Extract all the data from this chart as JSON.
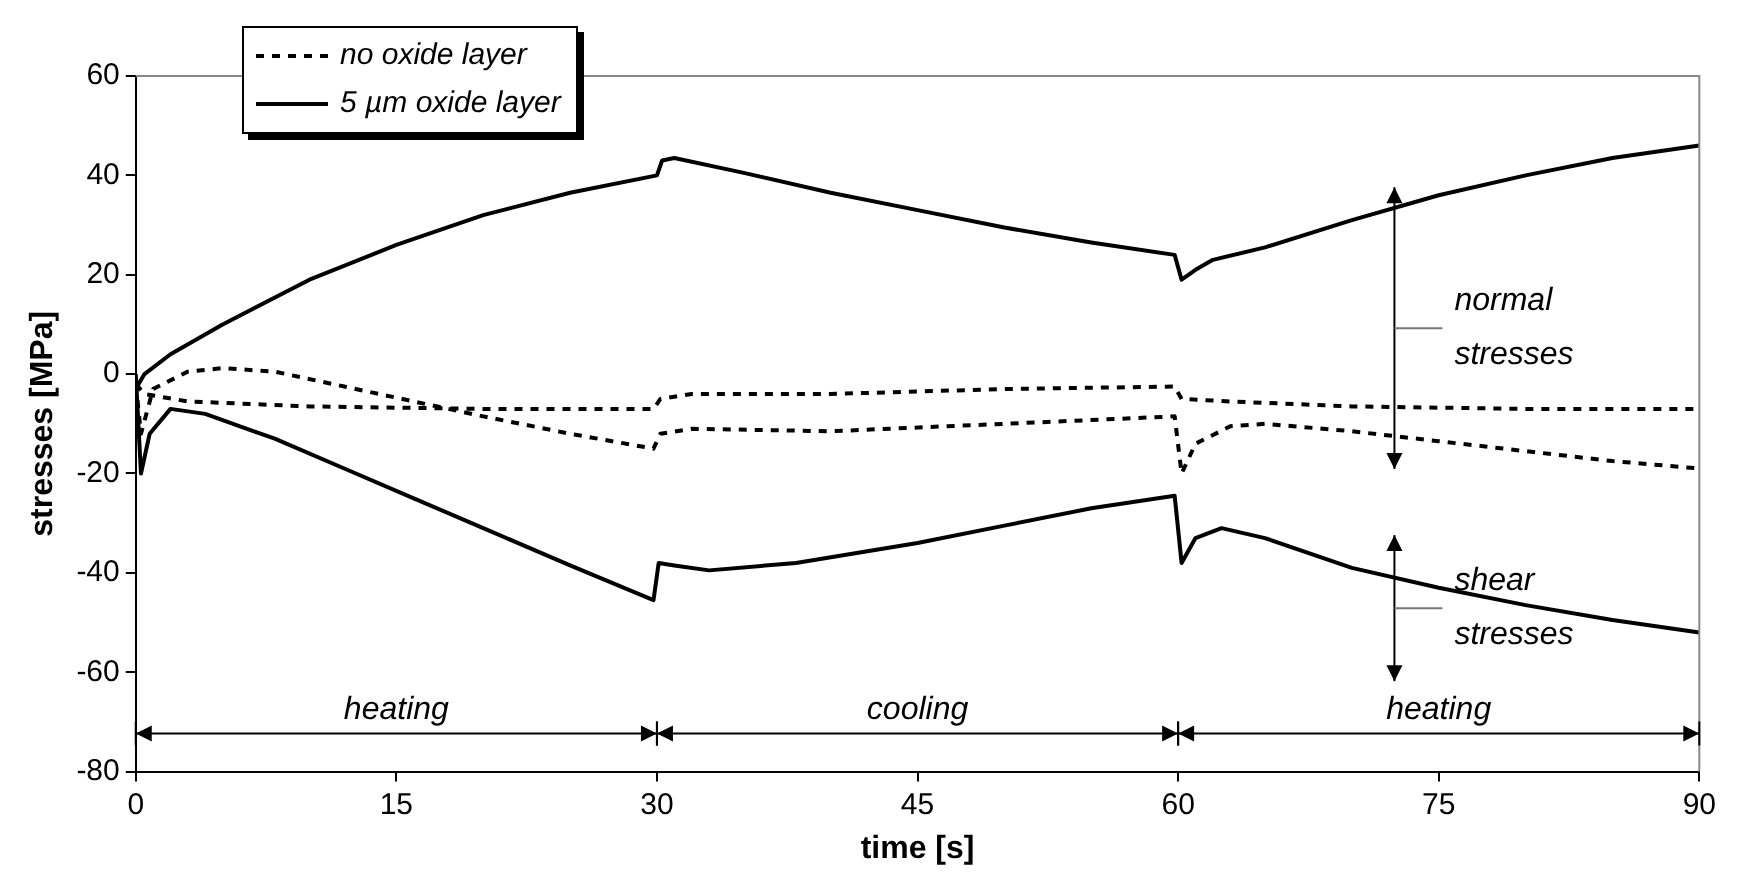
{
  "chart_data": {
    "type": "line",
    "xlabel": "time [s]",
    "ylabel": "stresses [MPa]",
    "xlim": [
      0,
      90
    ],
    "xticks": [
      0,
      15,
      30,
      45,
      60,
      75,
      90
    ],
    "ylim": [
      -80,
      60
    ],
    "yticks": [
      -80,
      -60,
      -40,
      -20,
      0,
      20,
      40,
      60
    ],
    "grid": false,
    "legend": "top left",
    "marker": "none",
    "series": [
      {
        "name": "no oxide layer",
        "color": "#000000",
        "line_style": "dashed",
        "x": [
          0,
          0.5,
          3,
          10,
          20,
          29.8,
          30.2,
          32,
          40,
          50,
          59.8,
          60.2,
          63,
          70,
          80,
          90
        ],
        "values": [
          -2,
          -4,
          -5.5,
          -6.5,
          -7,
          -7,
          -5,
          -4,
          -4,
          -3,
          -2.5,
          -5,
          -5.5,
          -6.5,
          -7,
          -7
        ]
      },
      {
        "color": "#000000",
        "line_style": "dashed",
        "x": [
          0,
          0.3,
          1,
          3,
          5,
          8,
          12,
          16,
          20,
          25,
          29.8,
          30.2,
          32,
          40,
          50,
          59.8,
          60.2,
          61,
          63,
          65,
          70,
          75,
          80,
          85,
          90
        ],
        "values": [
          -2,
          -12,
          -3,
          0.5,
          1.2,
          0.5,
          -2.5,
          -5.5,
          -8.5,
          -12,
          -15,
          -12,
          -11,
          -11.5,
          -10,
          -8.5,
          -20,
          -14,
          -10.5,
          -10,
          -11.5,
          -13.5,
          -15.5,
          -17.5,
          -19
        ]
      },
      {
        "name": "5 µm oxide layer",
        "color": "#000000",
        "line_style": "solid",
        "x": [
          0,
          0.5,
          2,
          5,
          10,
          15,
          20,
          25,
          30,
          30.3,
          31,
          35,
          40,
          45,
          50,
          55,
          59.8,
          60.2,
          61,
          62,
          65,
          70,
          75,
          80,
          85,
          90
        ],
        "values": [
          -3,
          0,
          4,
          10,
          19,
          26,
          32,
          36.5,
          40,
          43,
          43.5,
          40.5,
          36.5,
          33,
          29.5,
          26.5,
          24,
          19,
          21,
          23,
          25.5,
          31,
          36,
          40,
          43.5,
          46
        ]
      },
      {
        "color": "#000000",
        "line_style": "solid",
        "x": [
          0,
          0.3,
          0.8,
          2,
          4,
          8,
          12,
          16,
          20,
          25,
          29.8,
          30.1,
          31,
          33,
          38,
          45,
          50,
          55,
          59.8,
          60.2,
          61,
          62.5,
          65,
          70,
          75,
          80,
          85,
          90
        ],
        "values": [
          0,
          -20,
          -12,
          -7,
          -8,
          -13,
          -19,
          -25,
          -31,
          -38.5,
          -45.5,
          -38,
          -38.5,
          -39.5,
          -38,
          -34,
          -30.5,
          -27,
          -24.5,
          -38,
          -33,
          -31,
          -33,
          -39,
          -43,
          -46.5,
          -49.5,
          -52
        ]
      }
    ],
    "annotations": [
      "heating",
      "cooling",
      "heating",
      "normal stresses",
      "shear stresses"
    ]
  }
}
